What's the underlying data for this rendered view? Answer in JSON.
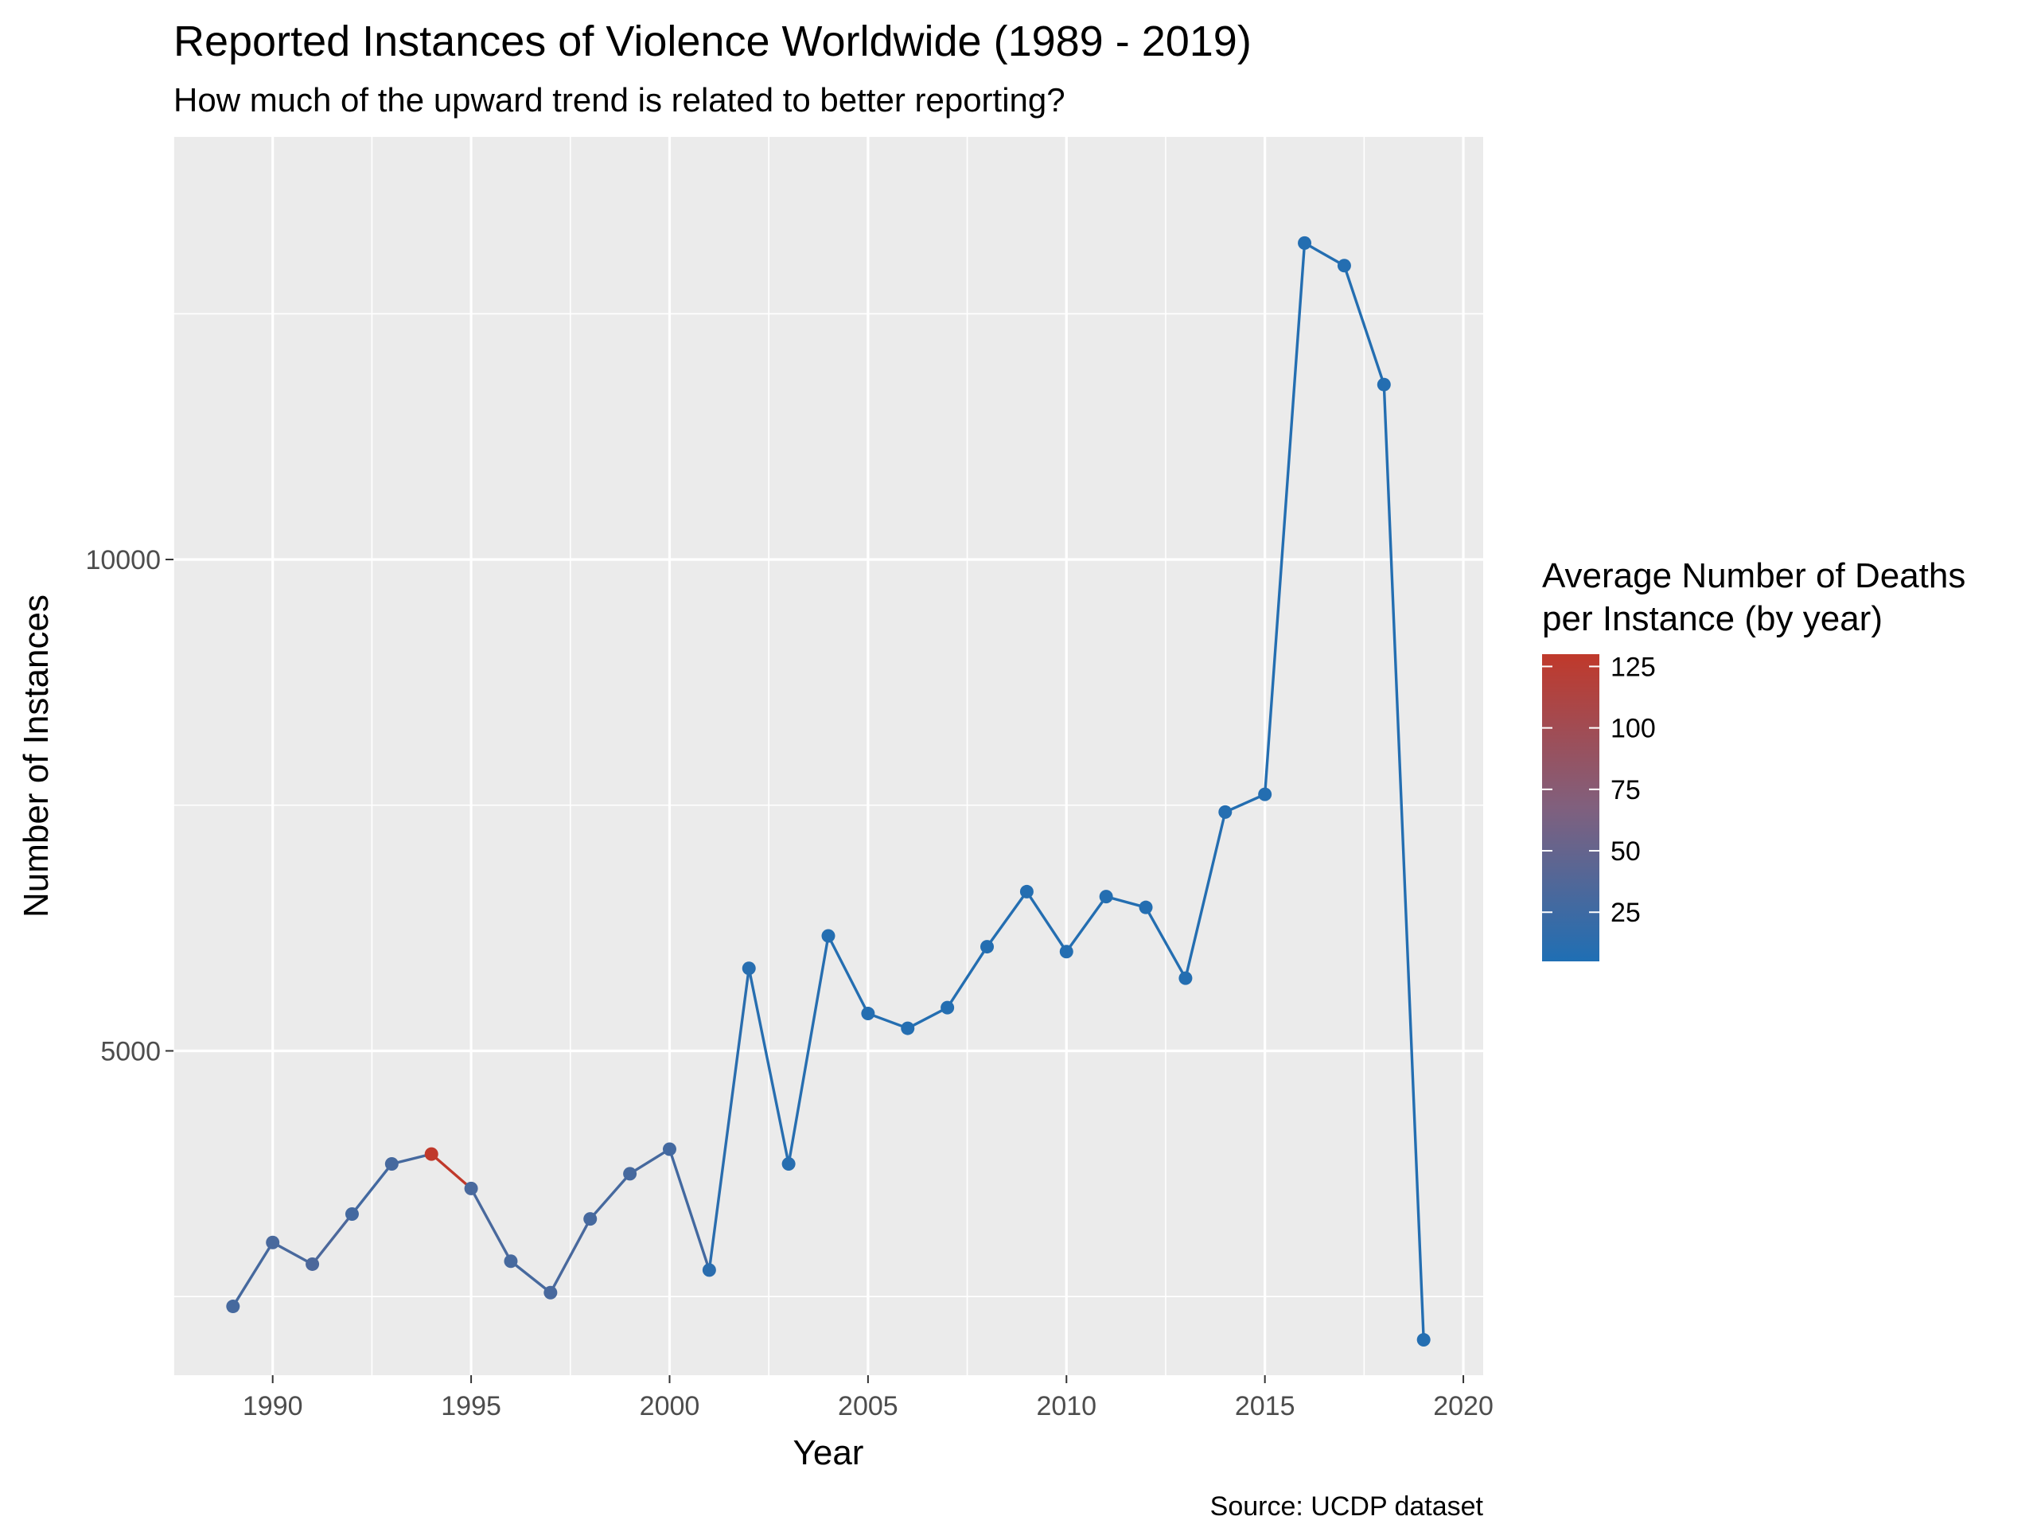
{
  "chart_data": {
    "type": "line",
    "title": "Reported Instances of Violence Worldwide (1989 - 2019)",
    "subtitle": "How much of the upward trend is related to better reporting?",
    "caption": "Source: UCDP dataset",
    "xlabel": "Year",
    "ylabel": "Number of Instances",
    "xlim": [
      1987.5,
      2020.5
    ],
    "ylim": [
      1700,
      14300
    ],
    "x_ticks": [
      1990,
      1995,
      2000,
      2005,
      2010,
      2015,
      2020
    ],
    "x_minor_ticks": [
      1987.5,
      1992.5,
      1997.5,
      2002.5,
      2007.5,
      2012.5,
      2017.5
    ],
    "y_ticks": [
      5000,
      10000
    ],
    "y_minor_ticks": [
      2500,
      7500,
      12500
    ],
    "grid": true,
    "legend_position": "right",
    "color_scale": {
      "title": "Average Number of Deaths per Instance (by year)",
      "title_lines": [
        "Average Number of Deaths",
        "per Instance (by year)"
      ],
      "low_color": "#1f6fb4",
      "high_color": "#c0392b",
      "range": [
        5,
        130
      ],
      "ticks": [
        25,
        50,
        75,
        100,
        125
      ]
    },
    "x": [
      1989,
      1990,
      1991,
      1992,
      1993,
      1994,
      1995,
      1996,
      1997,
      1998,
      1999,
      2000,
      2001,
      2002,
      2003,
      2004,
      2005,
      2006,
      2007,
      2008,
      2009,
      2010,
      2011,
      2012,
      2013,
      2014,
      2015,
      2016,
      2017,
      2018,
      2019
    ],
    "y": [
      2400,
      3050,
      2830,
      3340,
      3850,
      3950,
      3600,
      2860,
      2540,
      3290,
      3750,
      4000,
      2770,
      5840,
      3850,
      6170,
      5380,
      5230,
      5440,
      6060,
      6620,
      6010,
      6570,
      6460,
      5740,
      7430,
      7610,
      13220,
      12990,
      11780,
      2060
    ],
    "color_value": [
      30,
      32,
      34,
      28,
      30,
      130,
      32,
      30,
      32,
      30,
      30,
      28,
      12,
      10,
      10,
      8,
      8,
      8,
      8,
      8,
      8,
      8,
      8,
      8,
      8,
      8,
      8,
      8,
      8,
      8,
      8
    ]
  }
}
